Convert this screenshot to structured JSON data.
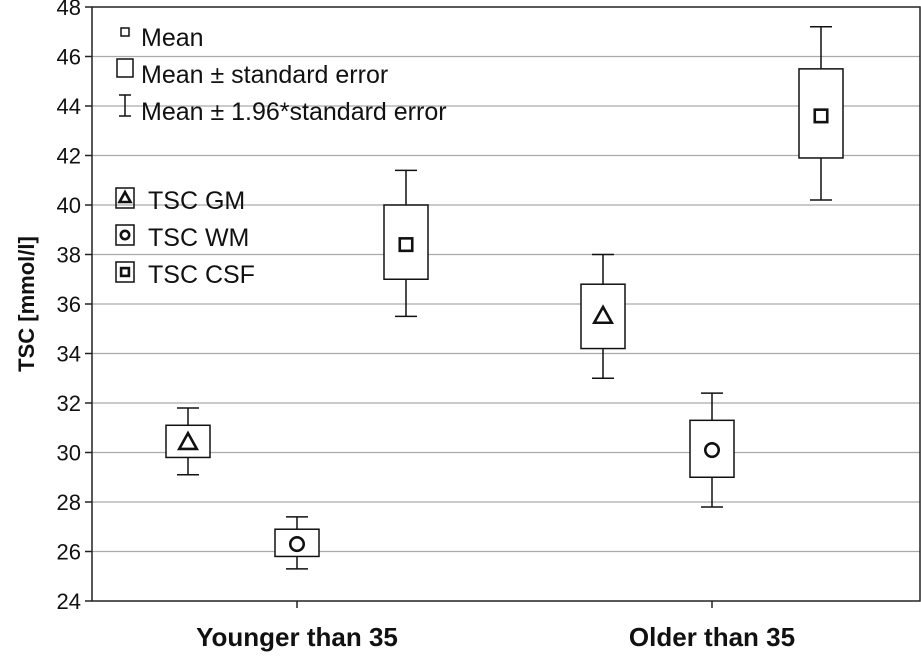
{
  "chart_data": {
    "type": "box",
    "ylabel": "TSC [mmol/l]",
    "xlabel": "",
    "ylim": [
      24,
      48
    ],
    "yticks": [
      24,
      26,
      28,
      30,
      32,
      34,
      36,
      38,
      40,
      42,
      44,
      46,
      48
    ],
    "grid": true,
    "categories": [
      "Younger than 35",
      "Older than 35"
    ],
    "series": [
      {
        "name": "TSC GM",
        "marker": "triangle",
        "mean": [
          30.4,
          35.5
        ],
        "se_low": [
          29.8,
          34.2
        ],
        "se_high": [
          31.1,
          36.8
        ],
        "ci_low": [
          29.1,
          33.0
        ],
        "ci_high": [
          31.8,
          38.0
        ]
      },
      {
        "name": "TSC WM",
        "marker": "circle",
        "mean": [
          26.3,
          30.1
        ],
        "se_low": [
          25.8,
          29.0
        ],
        "se_high": [
          26.9,
          31.3
        ],
        "ci_low": [
          25.3,
          27.8
        ],
        "ci_high": [
          27.4,
          32.4
        ]
      },
      {
        "name": "TSC CSF",
        "marker": "square",
        "mean": [
          38.4,
          43.6
        ],
        "se_low": [
          37.0,
          41.9
        ],
        "se_high": [
          40.0,
          45.5
        ],
        "ci_low": [
          35.5,
          40.2
        ],
        "ci_high": [
          41.4,
          47.2
        ]
      }
    ],
    "legend_stats": [
      "Mean",
      "Mean ± standard error",
      "Mean ± 1.96*standard error"
    ],
    "legend_placement": "top-left"
  }
}
